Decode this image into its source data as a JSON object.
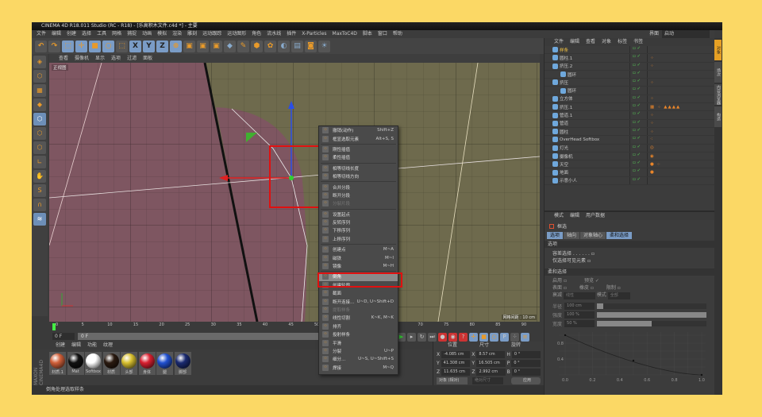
{
  "window": {
    "title": "CINEMA 4D R18.011 Studio (RC - R18) - [乐高积木文件.c4d *] - 主要"
  },
  "menu": [
    "文件",
    "编辑",
    "创建",
    "选择",
    "工具",
    "网格",
    "捕捉",
    "动画",
    "模拟",
    "渲染",
    "雕刻",
    "运动跟踪",
    "运动图形",
    "角色",
    "流水线",
    "插件",
    "X-Particles",
    "MaxToC4D",
    "脚本",
    "窗口",
    "帮助"
  ],
  "layout": {
    "label": "界面",
    "value": "启动"
  },
  "toolbar": {
    "icons": [
      "undo-icon",
      "redo-icon",
      "live-select-icon",
      "move-icon",
      "scale-icon",
      "rotate-icon",
      "select-icon",
      "x-axis-icon",
      "y-axis-icon",
      "z-axis-icon",
      "world-coord-icon",
      "render-view-icon",
      "render-icon",
      "render-settings-icon",
      "cube-icon",
      "pen-icon",
      "subdivision-icon",
      "cloner-icon",
      "deformer-icon",
      "floor-icon",
      "camera-icon",
      "light-icon"
    ],
    "axes": [
      "X",
      "Y",
      "Z"
    ]
  },
  "viewport": {
    "menu": [
      "查看",
      "摄像机",
      "显示",
      "选项",
      "过滤",
      "面板"
    ],
    "name": "正视图",
    "grid_label": "网格间距 : 10 cm",
    "colors": {
      "pink": "#7e5661",
      "olive": "#6e6a4d",
      "axis_y": "#2a4ee8",
      "axis_x": "#e02020"
    }
  },
  "context_menu": {
    "items": [
      {
        "label": "撤销(动作)",
        "shortcut": "Shift+Z"
      },
      {
        "label": "框显选取元素",
        "shortcut": "Alt+S, S"
      },
      {
        "sep": true
      },
      {
        "label": "刚性插值",
        "shortcut": ""
      },
      {
        "label": "柔性插值",
        "shortcut": ""
      },
      {
        "sep": true
      },
      {
        "label": "相等切线长度",
        "shortcut": ""
      },
      {
        "label": "相等切线方向",
        "shortcut": ""
      },
      {
        "sep": true
      },
      {
        "label": "合并分段",
        "shortcut": ""
      },
      {
        "label": "断开分段",
        "shortcut": ""
      },
      {
        "label": "分裂片段",
        "shortcut": "",
        "disabled": true
      },
      {
        "sep": true
      },
      {
        "label": "设置起点",
        "shortcut": ""
      },
      {
        "label": "反转序列",
        "shortcut": ""
      },
      {
        "label": "下移序列",
        "shortcut": ""
      },
      {
        "label": "上移序列",
        "shortcut": ""
      },
      {
        "sep": true
      },
      {
        "label": "创建点",
        "shortcut": "M~A"
      },
      {
        "label": "磁铁",
        "shortcut": "M~I"
      },
      {
        "label": "镜像",
        "shortcut": "M~H"
      },
      {
        "sep": true
      },
      {
        "label": "倒角",
        "shortcut": "",
        "highlighted": true
      },
      {
        "label": "创建轮廓",
        "shortcut": ""
      },
      {
        "label": "截面",
        "shortcut": ""
      },
      {
        "label": "断开连接...",
        "shortcut": "U~D, U~Shift+D"
      },
      {
        "label": "提取样条",
        "shortcut": "",
        "disabled": true
      },
      {
        "label": "线性切割",
        "shortcut": "K~K, M~K"
      },
      {
        "label": "排齐",
        "shortcut": ""
      },
      {
        "label": "投射样条",
        "shortcut": ""
      },
      {
        "label": "平滑",
        "shortcut": ""
      },
      {
        "label": "分裂",
        "shortcut": "U~P"
      },
      {
        "label": "细分...",
        "shortcut": "U~S, U~Shift+S"
      },
      {
        "label": "焊接",
        "shortcut": "M~Q"
      }
    ]
  },
  "timeline": {
    "ticks": [
      "0",
      "5",
      "10",
      "15",
      "20",
      "25",
      "30",
      "35",
      "40",
      "45",
      "50",
      "55",
      "60",
      "65",
      "70",
      "75",
      "80",
      "85",
      "90"
    ],
    "current_frame": "0 F",
    "start_frame": "0 F",
    "end_frame": "0 F"
  },
  "materials": {
    "menu": [
      "创建",
      "编辑",
      "功能",
      "纹理"
    ],
    "items": [
      {
        "name": "材质.1",
        "color": "#d0603a"
      },
      {
        "name": "Mat",
        "color": "#111111"
      },
      {
        "name": "Softbox",
        "color": "#ffffff"
      },
      {
        "name": "材质",
        "color": "#2a1a10"
      },
      {
        "name": "头部",
        "color": "#d8c030"
      },
      {
        "name": "身体",
        "color": "#d82030"
      },
      {
        "name": "腿",
        "color": "#2050d0"
      },
      {
        "name": "脚部",
        "color": "#1a2a70"
      }
    ]
  },
  "coordinates": {
    "headers": [
      "位置",
      "尺寸",
      "旋转"
    ],
    "rows": [
      {
        "axis": "X",
        "pos": "-4.085 cm",
        "size_axis": "X",
        "size": "8.57 cm",
        "rot_axis": "H",
        "rot": "0 °"
      },
      {
        "axis": "Y",
        "pos": "41.308 cm",
        "size_axis": "Y",
        "size": "16.505 cm",
        "rot_axis": "P",
        "rot": "0 °"
      },
      {
        "axis": "Z",
        "pos": "11.635 cm",
        "size_axis": "Z",
        "size": "2.992 cm",
        "rot_axis": "B",
        "rot": "0 °"
      }
    ],
    "mode": "对象 (相对)",
    "size_mode": "绝对尺寸",
    "apply": "应用"
  },
  "status": "倒角处理选取样条",
  "object_manager": {
    "menu": [
      "文件",
      "编辑",
      "查看",
      "对象",
      "标签",
      "书签"
    ],
    "objects": [
      {
        "name": "样条",
        "depth": 0,
        "active": true,
        "tags": ""
      },
      {
        "name": "圆柱.1",
        "depth": 0,
        "tags": "⁘"
      },
      {
        "name": "挤压.2",
        "depth": 0,
        "tags": "⁘"
      },
      {
        "name": "圆环",
        "depth": 1,
        "tags": ""
      },
      {
        "name": "挤压",
        "depth": 0,
        "tags": "⁘"
      },
      {
        "name": "圆环",
        "depth": 1,
        "tags": ""
      },
      {
        "name": "立方体",
        "depth": 0,
        "tags": "⁘"
      },
      {
        "name": "挤压.1",
        "depth": 0,
        "tags": "▦ ⁘ ▲▲▲▲"
      },
      {
        "name": "管道.1",
        "depth": 0,
        "tags": "⁘"
      },
      {
        "name": "管道",
        "depth": 0,
        "tags": "⁘"
      },
      {
        "name": "圆柱",
        "depth": 0,
        "tags": "⁘"
      },
      {
        "name": "OverHead Softbox",
        "depth": 0,
        "tags": "⁖"
      },
      {
        "name": "灯光",
        "depth": 0,
        "tags": "◎"
      },
      {
        "name": "摄像机",
        "depth": 0,
        "tags": "◉"
      },
      {
        "name": "天空",
        "depth": 0,
        "tags": "● ⁘"
      },
      {
        "name": "地面",
        "depth": 0,
        "tags": "●"
      },
      {
        "name": "示意小人",
        "depth": 0,
        "tags": ""
      }
    ]
  },
  "side_tabs": [
    "对象",
    "场次",
    "内容浏览器",
    "构造"
  ],
  "attributes": {
    "menu": [
      "模式",
      "编辑",
      "用户数据"
    ],
    "tool": "框选",
    "tabs": [
      {
        "label": "选项",
        "active": true
      },
      {
        "label": "轴向",
        "active": false
      },
      {
        "label": "对象轴心",
        "active": false
      },
      {
        "label": "柔和选择",
        "active": true
      }
    ],
    "section1": "选项",
    "opt1": "容差选择 . . . . . .",
    "opt2": "仅选择可见元素",
    "section2": "柔和选择",
    "enable": "启用",
    "preview": "预览",
    "surface": "表面",
    "rubber": "橡皮",
    "restrict": "限制",
    "mode_label": "衰减",
    "mode_value": "线性",
    "mode2_label": "模式",
    "mode2_value": "全部",
    "fields": [
      {
        "label": "半径",
        "value": "100 cm",
        "fill": 0.06
      },
      {
        "label": "强度",
        "value": "100 %",
        "fill": 1.0
      },
      {
        "label": "宽度",
        "value": "50 %",
        "fill": 0.5
      }
    ],
    "curve": {
      "type": "line",
      "x": [
        0,
        0.5,
        1.0
      ],
      "y": [
        1.0,
        0.36,
        0.0
      ],
      "xticks": [
        "0.0",
        "0.2",
        "0.4",
        "0.6",
        "0.8",
        "1.0"
      ],
      "yticks": [
        "0.8",
        "0.4"
      ]
    }
  }
}
